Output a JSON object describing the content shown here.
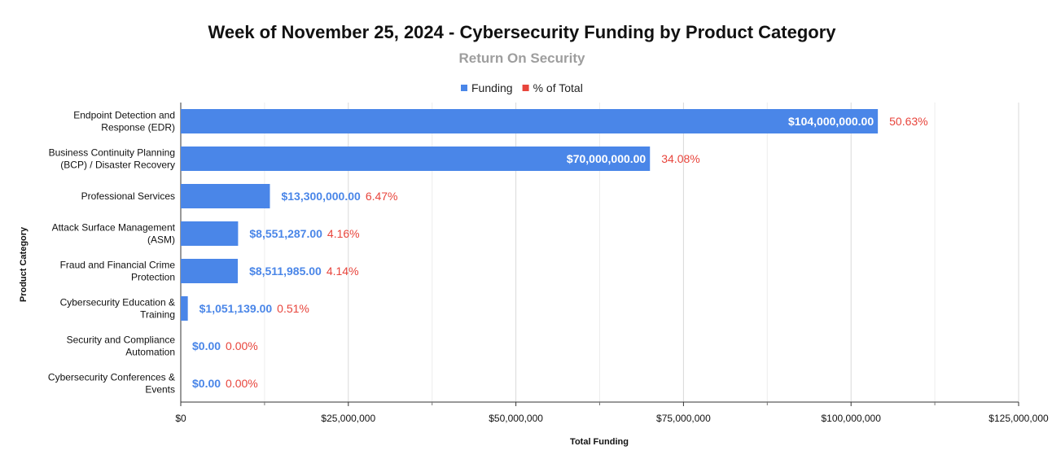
{
  "chart_data": {
    "type": "bar",
    "orientation": "horizontal",
    "title": "Week of November 25, 2024 - Cybersecurity Funding by Product Category",
    "subtitle": "Return On Security",
    "xlabel": "Total Funding",
    "ylabel": "Product Category",
    "xlim": [
      0,
      125000000
    ],
    "x_ticks": [
      0,
      25000000,
      50000000,
      75000000,
      100000000,
      125000000
    ],
    "x_tick_labels": [
      "$0",
      "$25,000,000",
      "$50,000,000",
      "$75,000,000",
      "$100,000,000",
      "$125,000,000"
    ],
    "legend_position": "top",
    "legend": [
      {
        "name": "Funding",
        "color": "#4a86e8"
      },
      {
        "name": "% of Total",
        "color": "#e8453c"
      }
    ],
    "categories": [
      [
        "Endpoint Detection and",
        "Response (EDR)"
      ],
      [
        "Business Continuity Planning",
        "(BCP) / Disaster Recovery"
      ],
      [
        "Professional Services"
      ],
      [
        "Attack Surface Management",
        "(ASM)"
      ],
      [
        "Fraud and Financial Crime",
        "Protection"
      ],
      [
        "Cybersecurity Education &",
        "Training"
      ],
      [
        "Security and Compliance",
        "Automation"
      ],
      [
        "Cybersecurity Conferences &",
        "Events"
      ]
    ],
    "values": [
      104000000,
      70000000,
      13300000,
      8551287,
      8511985,
      1051139,
      0,
      0
    ],
    "value_labels": [
      "$104,000,000.00",
      "$70,000,000.00",
      "$13,300,000.00",
      "$8,551,287.00",
      "$8,511,985.00",
      "$1,051,139.00",
      "$0.00",
      "$0.00"
    ],
    "percent_labels": [
      "50.63%",
      "34.08%",
      "6.47%",
      "4.16%",
      "4.14%",
      "0.51%",
      "0.00%",
      "0.00%"
    ],
    "bar_color": "#4a86e8",
    "percent_color": "#e8453c",
    "grid": true
  }
}
